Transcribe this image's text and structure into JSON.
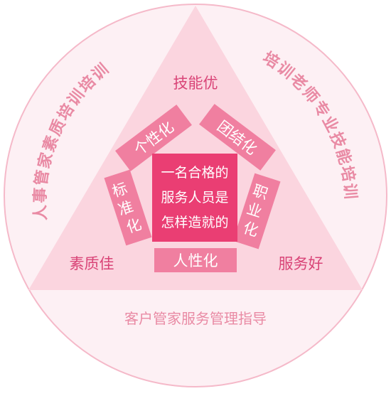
{
  "diagram": {
    "center_text": [
      "一名合格的",
      "服务人员是",
      "怎样造就的"
    ],
    "pentagon": {
      "top_left": "个性化",
      "top_right": "团结化",
      "left": "标准化",
      "right": "职业化",
      "bottom": "人性化"
    },
    "corners": {
      "top": "技能优",
      "bottom_left": "素质佳",
      "bottom_right": "服务好"
    },
    "arcs": {
      "left": "人事管家素质培训培训",
      "right": "培训老师专业技能培训",
      "bottom": "客户管家服务管理指导"
    },
    "colors": {
      "outer_circle_fill": "#fdf0f4",
      "outer_circle_stroke": "#f5b9c9",
      "triangle": "#fbd5df",
      "block": "#f07fa0",
      "center": "#ea3e73",
      "corner_text": "#d94477",
      "arc_text": "#e98aa4"
    }
  }
}
